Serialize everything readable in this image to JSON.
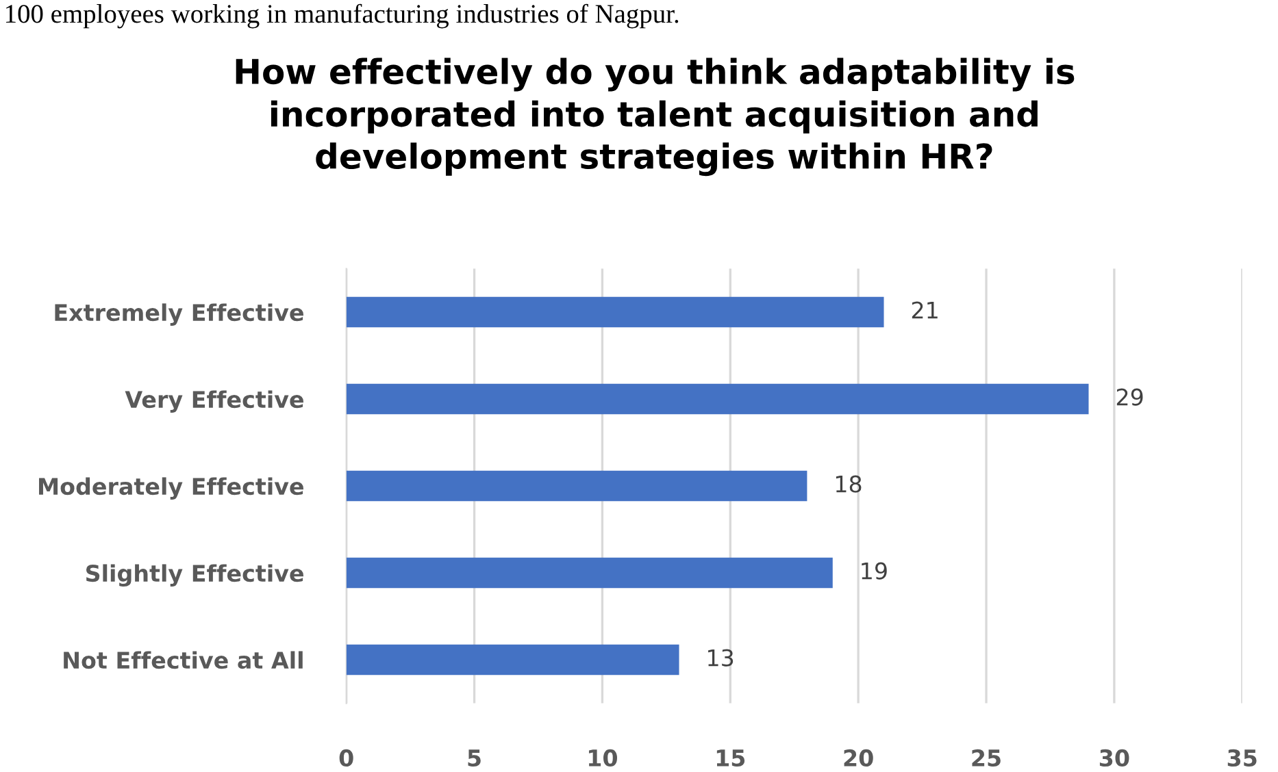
{
  "chart_data": {
    "type": "bar",
    "orientation": "horizontal",
    "title": "How effectively do you think adaptability is\nincorporated into talent acquisition and\ndevelopment strategies within HR?",
    "categories": [
      "Extremely Effective",
      "Very Effective",
      "Moderately Effective",
      "Slightly Effective",
      "Not Effective at All"
    ],
    "values": [
      21,
      29,
      18,
      19,
      13
    ],
    "color": "#4472c4",
    "xlim": [
      0,
      35
    ],
    "xticks": [
      0,
      5,
      10,
      15,
      20,
      25,
      30,
      35
    ],
    "grid": "x",
    "data_labels": true,
    "annotations": [
      "100 employees working in manufacturing industries of Nagpur."
    ]
  }
}
